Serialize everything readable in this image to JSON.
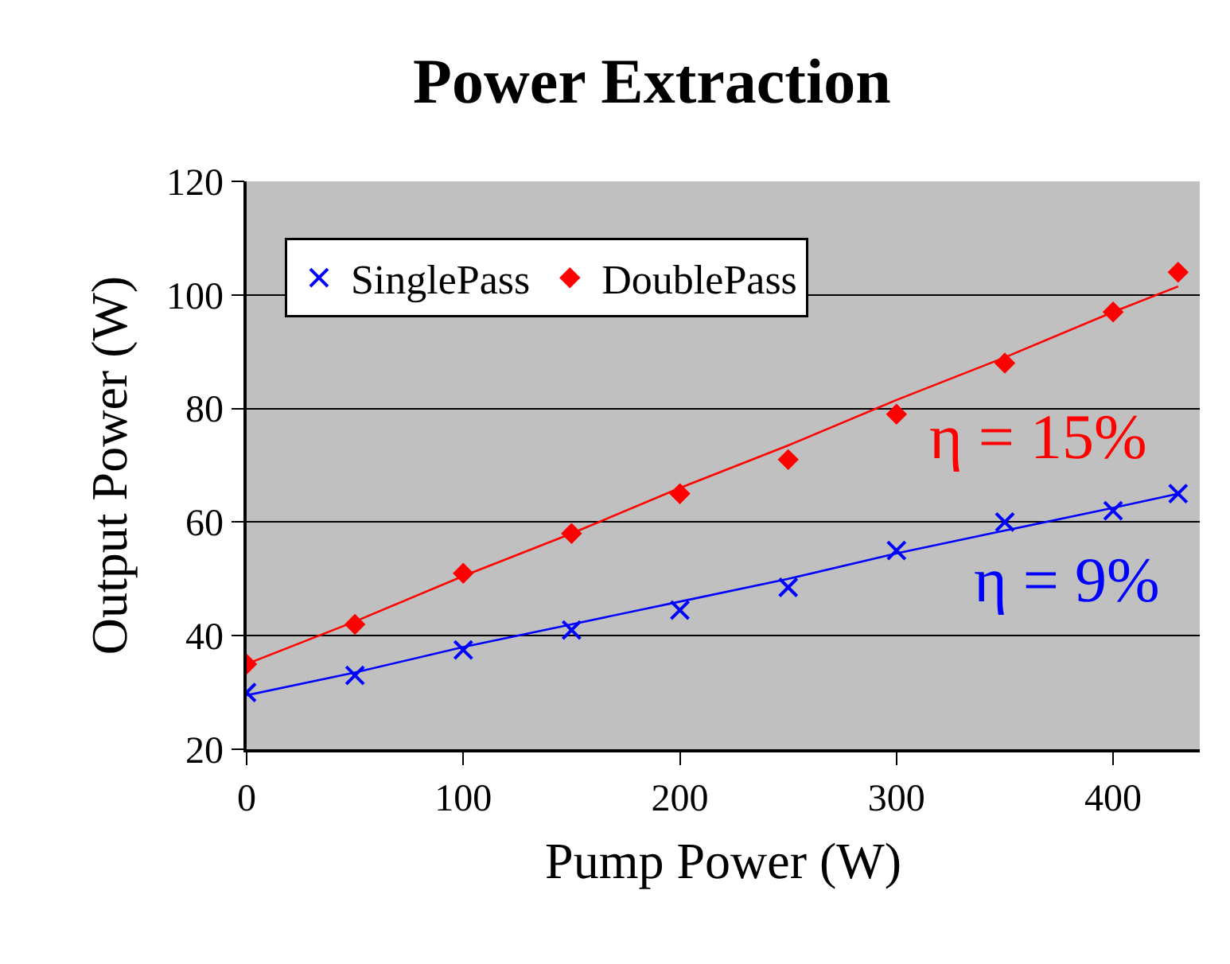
{
  "chart_data": {
    "type": "scatter",
    "title": "Power Extraction",
    "xlabel": "Pump Power (W)",
    "ylabel": "Output Power (W)",
    "x": [
      0,
      50,
      100,
      150,
      200,
      250,
      300,
      350,
      400,
      430
    ],
    "series": [
      {
        "name": "SinglePass",
        "color": "#0000ff",
        "marker": "cross",
        "values": [
          30,
          33,
          37.5,
          41,
          44.5,
          48.5,
          55,
          60,
          62,
          65
        ]
      },
      {
        "name": "DoublePass",
        "color": "#ff0000",
        "marker": "diamond",
        "values": [
          35,
          42,
          51,
          58,
          65,
          71,
          79,
          88,
          97,
          104
        ]
      },
      {
        "type": "line",
        "color": "#0000ff",
        "marker": "none",
        "values": [
          29.5,
          33.5,
          38,
          42,
          46,
          50,
          54.5,
          58.5,
          62.5,
          65
        ]
      },
      {
        "type": "line",
        "color": "#ff0000",
        "marker": "none",
        "values": [
          35,
          42.5,
          50.5,
          58,
          66,
          73.5,
          81.5,
          89,
          97,
          101.5
        ]
      }
    ],
    "annotations": [
      "η = 9%",
      "η = 15%"
    ],
    "xlim": [
      0,
      440
    ],
    "xticks": [
      0,
      100,
      200,
      300,
      400
    ],
    "ylim": [
      20,
      120
    ],
    "yticks": [
      20,
      40,
      60,
      80,
      100,
      120
    ],
    "grid": "y",
    "legend": "top left"
  }
}
